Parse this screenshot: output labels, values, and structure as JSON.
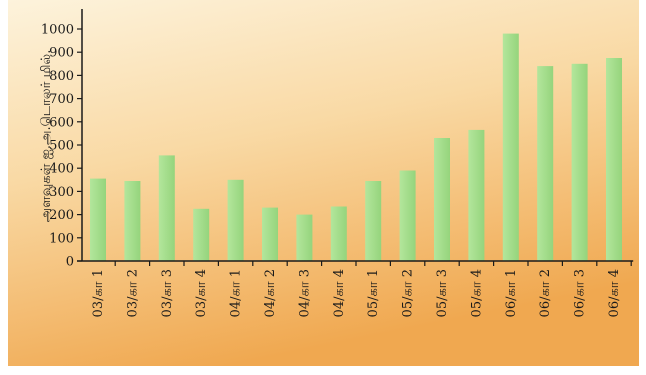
{
  "chart_data": {
    "type": "bar",
    "ylabel": "அளவுகள் ஐ.அ.டொலர் மில்.",
    "ylim": [
      0,
      1000
    ],
    "yticks": [
      0,
      100,
      200,
      300,
      400,
      500,
      600,
      700,
      800,
      900,
      1000
    ],
    "categories": [
      "03/கா 1",
      "03/கா 2",
      "03/கா 3",
      "03/கா 4",
      "04/கா 1",
      "04/கா 2",
      "04/கா 3",
      "04/கா 4",
      "05/கா 1",
      "05/கா 2",
      "05/கா 3",
      "05/கா 4",
      "06/கா 1",
      "06/கா 2",
      "06/கா 3",
      "06/கா 4"
    ],
    "values": [
      355,
      345,
      455,
      225,
      350,
      230,
      200,
      235,
      345,
      390,
      530,
      565,
      980,
      840,
      850,
      875
    ],
    "grid": false,
    "legend": "none"
  },
  "colors": {
    "bar": "#a6dd8c",
    "axis": "#1a1a1a",
    "background_top": "#fdf1d8",
    "background_bottom": "#f2ac54"
  }
}
